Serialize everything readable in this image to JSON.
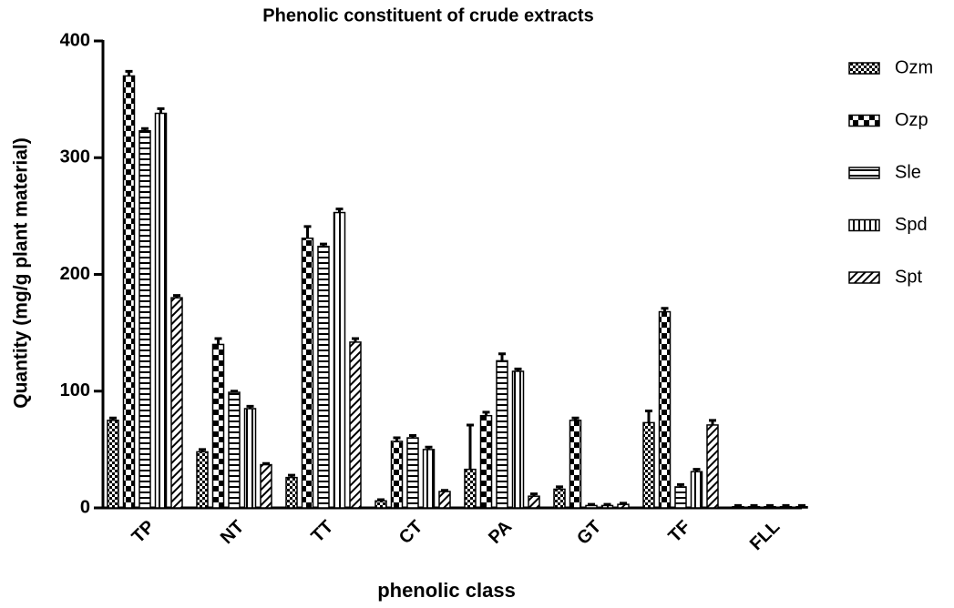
{
  "chart_data": {
    "type": "bar",
    "title": "Phenolic constituent of crude extracts",
    "x_label": "phenolic class",
    "y_label": "Quantity (mg/g plant material)",
    "categories": [
      "TP",
      "NT",
      "TT",
      "CT",
      "PA",
      "GT",
      "TF",
      "FLL"
    ],
    "series": [
      {
        "name": "Ozm",
        "color": "#000000",
        "values": [
          75,
          48,
          26,
          6,
          33,
          16,
          73,
          1
        ],
        "errors": [
          2,
          2,
          2,
          1,
          38,
          2,
          10,
          1
        ]
      },
      {
        "name": "Ozp",
        "color": "#000000",
        "values": [
          370,
          140,
          231,
          57,
          79,
          75,
          168,
          1
        ],
        "errors": [
          4,
          5,
          10,
          3,
          3,
          2,
          3,
          1
        ]
      },
      {
        "name": "Sle",
        "color": "#000000",
        "values": [
          323,
          99,
          224,
          60,
          126,
          2,
          18,
          1
        ],
        "errors": [
          2,
          1,
          2,
          2,
          6,
          1,
          2,
          1
        ]
      },
      {
        "name": "Spd",
        "color": "#000000",
        "values": [
          338,
          85,
          253,
          50,
          117,
          2,
          31,
          1
        ],
        "errors": [
          4,
          2,
          3,
          2,
          2,
          1,
          2,
          1
        ]
      },
      {
        "name": "Spt",
        "color": "#000000",
        "values": [
          180,
          37,
          142,
          14,
          10,
          3,
          71,
          1
        ],
        "errors": [
          2,
          1,
          3,
          1,
          2,
          1,
          4,
          1
        ]
      }
    ],
    "ylim": [
      0,
      400
    ],
    "yticks": [
      0,
      100,
      200,
      300,
      400
    ],
    "grid": false,
    "legend": "right"
  }
}
